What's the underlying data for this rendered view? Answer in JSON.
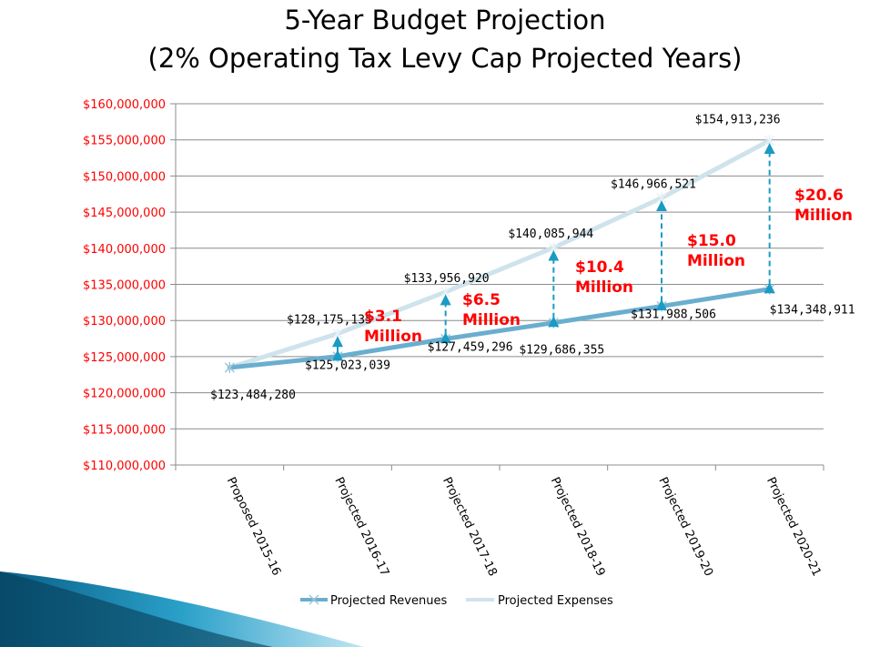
{
  "slide": {
    "title_line1": "5-Year Budget Projection",
    "title_line2": "(2% Operating Tax Levy Cap Projected Years)"
  },
  "chart_data": {
    "type": "line",
    "categories": [
      "Proposed 2015-16",
      "Projected 2016-17",
      "Projected 2017-18",
      "Projected 2018-19",
      "Projected 2019-20",
      "Projected 2020-21"
    ],
    "series": [
      {
        "name": "Projected Revenues",
        "color": "#6aaecf",
        "values": [
          123484280,
          125023039,
          127459296,
          129686355,
          131988506,
          134348911
        ],
        "labels": [
          "$123,484,280",
          "$125,023,039",
          "$127,459,296",
          "$129,686,355",
          "$131,988,506",
          "$134,348,911"
        ]
      },
      {
        "name": "Projected Expenses",
        "color": "#cfe3ec",
        "values": [
          123484280,
          128175135,
          133956920,
          140085944,
          146966521,
          154913236
        ],
        "labels": [
          "",
          "$128,175,135",
          "$133,956,920",
          "$140,085,944",
          "$146,966,521",
          "$154,913,236"
        ]
      }
    ],
    "ylim": [
      110000000,
      160000000
    ],
    "yticks": [
      {
        "value": 160000000,
        "label": "$160,000,000"
      },
      {
        "value": 155000000,
        "label": "$155,000,000"
      },
      {
        "value": 150000000,
        "label": "$150,000,000"
      },
      {
        "value": 145000000,
        "label": "$145,000,000"
      },
      {
        "value": 140000000,
        "label": "$140,000,000"
      },
      {
        "value": 135000000,
        "label": "$135,000,000"
      },
      {
        "value": 130000000,
        "label": "$130,000,000"
      },
      {
        "value": 125000000,
        "label": "$125,000,000"
      },
      {
        "value": 120000000,
        "label": "$120,000,000"
      },
      {
        "value": 115000000,
        "label": "$115,000,000"
      },
      {
        "value": 110000000,
        "label": "$110,000,000"
      }
    ],
    "gaps": [
      {
        "index": 1,
        "line1": "$3.1",
        "line2": "Million"
      },
      {
        "index": 2,
        "line1": "$6.5",
        "line2": "Million"
      },
      {
        "index": 3,
        "line1": "$10.4",
        "line2": "Million"
      },
      {
        "index": 4,
        "line1": "$15.0",
        "line2": "Million"
      },
      {
        "index": 5,
        "line1": "$20.6",
        "line2": "Million"
      }
    ],
    "grid": true,
    "legend": "bottom"
  },
  "colors": {
    "gap_text": "#ff0000",
    "ytick_text": "#ff0000",
    "arrow": "#1a9bc4",
    "grid": "#8c8c8c"
  }
}
